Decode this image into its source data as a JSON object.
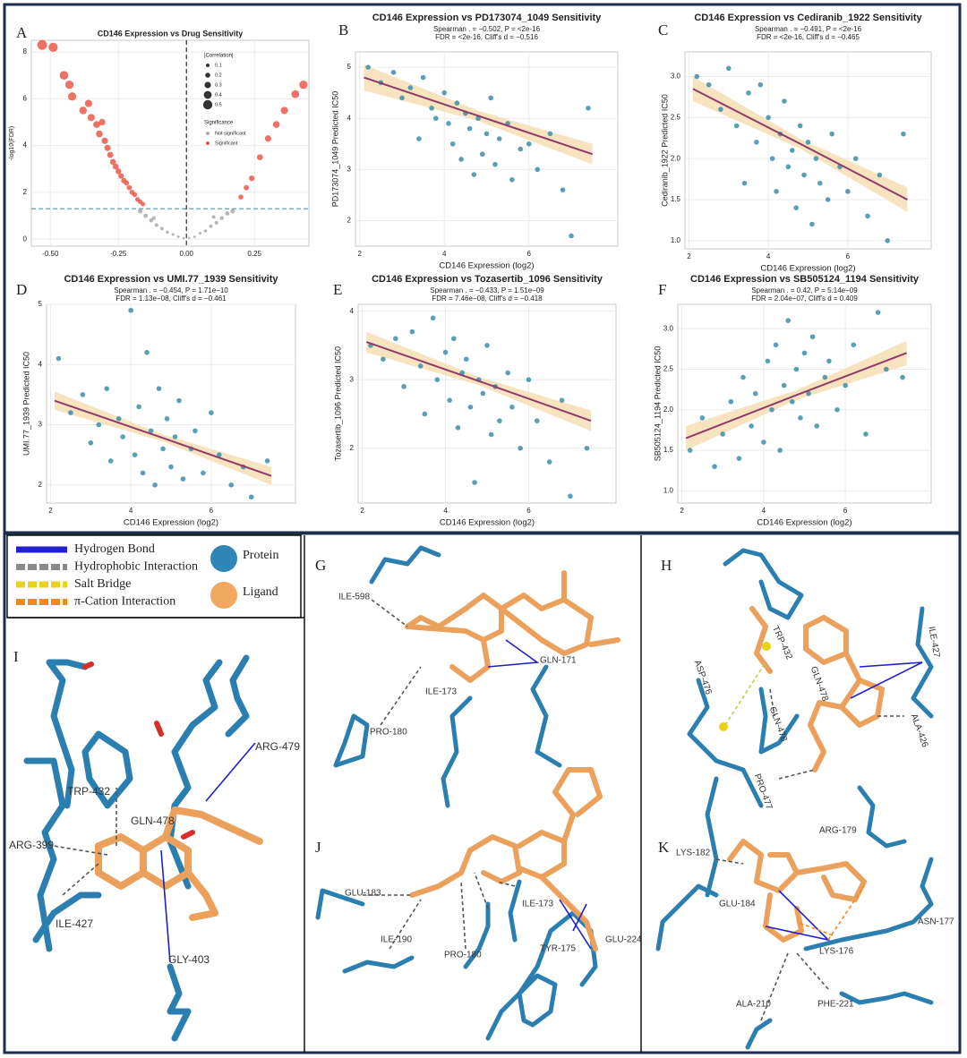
{
  "chart_data": [
    {
      "type": "volcano",
      "panel": "A",
      "title": "CD146 Expression vs Drug Sensitivity",
      "y_label": "-log10(FDR)",
      "xlim": [
        -0.57,
        0.45
      ],
      "ylim": [
        -0.3,
        8.5
      ],
      "xticks": [
        {
          "value": -0.5,
          "label": "-0.50"
        },
        {
          "value": -0.25,
          "label": "-0.25"
        },
        {
          "value": 0,
          "label": "0.00"
        },
        {
          "value": 0.25,
          "label": "0.25"
        }
      ],
      "yticks": [
        0,
        2,
        4,
        6,
        8
      ],
      "grid": true,
      "threshold": 1.3,
      "threshold_color": "#4a90c8",
      "vline": 0,
      "size_legend": {
        "title": "|Correlation|",
        "values": [
          0.1,
          0.2,
          0.3,
          0.4,
          0.5
        ]
      },
      "color_legend_title": "Significance",
      "series": [
        {
          "name": "Not significant",
          "color": "#a9a9a9",
          "x": [
            -0.17,
            -0.15,
            -0.13,
            -0.11,
            -0.09,
            -0.07,
            -0.05,
            -0.03,
            -0.01,
            0.01,
            0.03,
            0.05,
            0.07,
            0.09,
            0.11,
            0.13,
            0.15,
            0.17,
            -0.12,
            0.1
          ],
          "values": [
            1.2,
            1.0,
            0.8,
            0.6,
            0.45,
            0.3,
            0.2,
            0.1,
            0.05,
            0.05,
            0.1,
            0.25,
            0.35,
            0.55,
            0.7,
            0.9,
            1.1,
            1.2,
            0.9,
            0.95
          ]
        },
        {
          "name": "Significant",
          "color": "#e8594a",
          "x": [
            -0.53,
            -0.49,
            -0.45,
            -0.43,
            -0.42,
            -0.38,
            -0.36,
            -0.35,
            -0.33,
            -0.32,
            -0.31,
            -0.3,
            -0.29,
            -0.28,
            -0.27,
            -0.26,
            -0.25,
            -0.24,
            -0.23,
            -0.22,
            -0.21,
            -0.2,
            -0.19,
            -0.18,
            -0.17,
            -0.16,
            0.2,
            0.22,
            0.24,
            0.27,
            0.3,
            0.33,
            0.36,
            0.4,
            0.43
          ],
          "values": [
            8.3,
            8.2,
            7.0,
            6.6,
            6.1,
            5.5,
            5.8,
            5.2,
            4.9,
            4.5,
            5.0,
            4.2,
            3.9,
            3.6,
            3.3,
            3.1,
            2.9,
            2.7,
            2.5,
            2.4,
            2.2,
            2.0,
            1.9,
            1.7,
            1.6,
            1.5,
            1.8,
            2.2,
            2.6,
            3.5,
            4.3,
            4.9,
            5.5,
            6.2,
            6.6
          ]
        }
      ]
    },
    {
      "type": "scatter",
      "panel": "B",
      "title": "CD146 Expression vs PD173074_1049 Sensitivity",
      "stats": [
        "Spearman . = −0.502, P = <2e-16",
        "FDR = <2e-16, Cliff's d = −0.516"
      ],
      "x_label": "CD146 Expression (log2)",
      "y_label": "PD173074_1049 Predicted IC50",
      "xlim": [
        1.9,
        8.1
      ],
      "ylim": [
        1.5,
        5.3
      ],
      "xticks": [
        2,
        4,
        6
      ],
      "yticks": [
        2,
        3,
        4,
        5
      ],
      "grid": true,
      "color": "#3d8ea8",
      "x": [
        2.2,
        2.5,
        2.8,
        3.0,
        3.2,
        3.4,
        3.5,
        3.7,
        3.8,
        4.0,
        4.1,
        4.2,
        4.3,
        4.4,
        4.5,
        4.6,
        4.7,
        4.8,
        4.9,
        5.0,
        5.1,
        5.2,
        5.3,
        5.5,
        5.6,
        5.8,
        6.0,
        6.2,
        6.5,
        6.8,
        7.0,
        7.4
      ],
      "values": [
        5.0,
        4.7,
        4.9,
        4.4,
        4.6,
        3.6,
        4.8,
        4.2,
        4.0,
        4.5,
        3.9,
        3.5,
        4.3,
        3.2,
        4.1,
        3.8,
        2.9,
        4.0,
        3.3,
        3.7,
        4.4,
        3.1,
        3.6,
        3.9,
        2.8,
        3.4,
        3.5,
        3.0,
        3.7,
        2.6,
        1.7,
        4.2
      ],
      "fit": {
        "color": "#8e3b67",
        "band_color": "#f6dcb0",
        "x": [
          2.1,
          4.8,
          7.5
        ],
        "y": [
          4.8,
          4.05,
          3.3
        ],
        "lower": [
          4.55,
          3.95,
          3.1
        ],
        "upper": [
          5.05,
          4.15,
          3.5
        ]
      }
    },
    {
      "type": "scatter",
      "panel": "C",
      "title": "CD146 Expression vs Cediranib_1922 Sensitivity",
      "stats": [
        "Spearman . = −0.491, P = <2e-16",
        "FDR = <2e-16, Cliff's d = −0.465"
      ],
      "x_label": "CD146 Expression (log2)",
      "y_label": "Cediranib_1922 Predicted IC50",
      "xlim": [
        1.9,
        8.1
      ],
      "ylim": [
        0.9,
        3.3
      ],
      "xticks": [
        2,
        4,
        6
      ],
      "yticks": [
        {
          "value": 1,
          "label": "1.0"
        },
        1.5,
        {
          "value": 2,
          "label": "2.0"
        },
        2.5,
        {
          "value": 3,
          "label": "3.0"
        }
      ],
      "grid": true,
      "color": "#3d8ea8",
      "x": [
        2.2,
        2.5,
        2.8,
        3.0,
        3.2,
        3.4,
        3.5,
        3.7,
        3.8,
        4.0,
        4.1,
        4.2,
        4.3,
        4.4,
        4.5,
        4.6,
        4.7,
        4.8,
        4.9,
        5.0,
        5.1,
        5.2,
        5.3,
        5.5,
        5.6,
        5.8,
        6.0,
        6.2,
        6.5,
        6.8,
        7.0,
        7.4
      ],
      "values": [
        3.0,
        2.9,
        2.6,
        3.1,
        2.4,
        1.7,
        2.8,
        2.2,
        2.9,
        2.5,
        2.0,
        1.6,
        2.3,
        2.7,
        1.9,
        2.1,
        1.4,
        2.4,
        1.8,
        2.2,
        1.2,
        2.0,
        1.7,
        1.5,
        2.3,
        1.9,
        1.6,
        2.0,
        1.3,
        1.8,
        1.0,
        2.3
      ],
      "fit": {
        "color": "#8e3b67",
        "band_color": "#f6dcb0",
        "x": [
          2.1,
          4.8,
          7.5
        ],
        "y": [
          2.85,
          2.18,
          1.5
        ],
        "lower": [
          2.7,
          2.12,
          1.35
        ],
        "upper": [
          3.0,
          2.24,
          1.65
        ]
      }
    },
    {
      "type": "scatter",
      "panel": "D",
      "title": "CD146 Expression vs UMI.77_1939 Sensitivity",
      "stats": [
        "Spearman . = −0.454, P = 1.71e−10",
        "FDR = 1.13e−08, Cliff's d = −0.461"
      ],
      "x_label": "CD146 Expression (log2)",
      "y_label": "UMI.77_1939 Predicted IC50",
      "xlim": [
        1.9,
        8.1
      ],
      "ylim": [
        1.7,
        5.0
      ],
      "xticks": [
        2,
        4,
        6
      ],
      "yticks": [
        2,
        3,
        4,
        5
      ],
      "grid": true,
      "color": "#3d8ea8",
      "x": [
        2.2,
        2.5,
        2.8,
        3.0,
        3.2,
        3.4,
        3.5,
        3.7,
        3.8,
        4.0,
        4.1,
        4.2,
        4.3,
        4.4,
        4.5,
        4.6,
        4.7,
        4.8,
        4.9,
        5.0,
        5.1,
        5.2,
        5.3,
        5.5,
        5.6,
        5.8,
        6.0,
        6.2,
        6.5,
        6.8,
        7.0,
        7.4
      ],
      "values": [
        4.1,
        3.2,
        3.5,
        2.7,
        3.0,
        3.6,
        2.4,
        3.1,
        2.8,
        4.9,
        2.5,
        3.3,
        2.2,
        4.2,
        2.9,
        2.0,
        3.6,
        2.6,
        3.1,
        2.3,
        2.8,
        3.4,
        2.1,
        2.6,
        2.9,
        2.2,
        3.2,
        2.5,
        2.0,
        2.3,
        1.8,
        2.4
      ],
      "fit": {
        "color": "#8e3b67",
        "band_color": "#f6dcb0",
        "x": [
          2.1,
          4.8,
          7.5
        ],
        "y": [
          3.4,
          2.78,
          2.15
        ],
        "lower": [
          3.25,
          2.72,
          2.0
        ],
        "upper": [
          3.55,
          2.84,
          2.3
        ]
      }
    },
    {
      "type": "scatter",
      "panel": "E",
      "title": "CD146 Expression vs Tozasertib_1096 Sensitivity",
      "stats": [
        "Spearman . = −0.433, P = 1.51e−09",
        "FDR = 7.46e−08, Cliff's d = −0.418"
      ],
      "x_label": "CD146 Expression (log2)",
      "y_label": "Tozasertib_1096 Predicted IC50",
      "xlim": [
        1.9,
        8.1
      ],
      "ylim": [
        1.2,
        4.1
      ],
      "xticks": [
        2,
        4,
        6
      ],
      "yticks": [
        2,
        3,
        4
      ],
      "grid": true,
      "color": "#3d8ea8",
      "x": [
        2.2,
        2.5,
        2.8,
        3.0,
        3.2,
        3.4,
        3.5,
        3.7,
        3.8,
        4.0,
        4.1,
        4.2,
        4.3,
        4.4,
        4.5,
        4.6,
        4.7,
        4.8,
        4.9,
        5.0,
        5.1,
        5.2,
        5.3,
        5.5,
        5.6,
        5.8,
        6.0,
        6.2,
        6.5,
        6.8,
        7.0,
        7.4
      ],
      "values": [
        3.5,
        3.3,
        3.6,
        2.9,
        3.7,
        3.2,
        2.5,
        3.9,
        3.0,
        3.4,
        2.7,
        3.6,
        2.3,
        3.1,
        3.3,
        2.6,
        1.5,
        3.0,
        2.8,
        3.5,
        2.2,
        2.9,
        2.4,
        3.1,
        2.6,
        2.0,
        3.0,
        2.4,
        1.8,
        2.7,
        1.3,
        2.0
      ],
      "fit": {
        "color": "#8e3b67",
        "band_color": "#f6dcb0",
        "x": [
          2.1,
          4.8,
          7.5
        ],
        "y": [
          3.55,
          2.98,
          2.4
        ],
        "lower": [
          3.4,
          2.92,
          2.25
        ],
        "upper": [
          3.7,
          3.04,
          2.55
        ]
      }
    },
    {
      "type": "scatter",
      "panel": "F",
      "title": "CD146 Expression vs SB505124_1194 Sensitivity",
      "stats": [
        "Spearman . = 0.42, P = 5.14e−09",
        "FDR = 2.04e−07, Cliff's d = 0.409"
      ],
      "x_label": "CD146 Expression (log2)",
      "y_label": "SB505124_1194 Predicted IC50",
      "xlim": [
        1.9,
        8.1
      ],
      "ylim": [
        0.85,
        3.3
      ],
      "xticks": [
        2,
        4,
        6
      ],
      "yticks": [
        {
          "value": 1,
          "label": "1.0"
        },
        1.5,
        {
          "value": 2,
          "label": "2.0"
        },
        2.5,
        {
          "value": 3,
          "label": "3.0"
        }
      ],
      "grid": true,
      "color": "#3d8ea8",
      "x": [
        2.2,
        2.5,
        2.8,
        3.0,
        3.2,
        3.4,
        3.5,
        3.7,
        3.8,
        4.0,
        4.1,
        4.2,
        4.3,
        4.4,
        4.5,
        4.6,
        4.7,
        4.8,
        4.9,
        5.0,
        5.1,
        5.2,
        5.3,
        5.5,
        5.6,
        5.8,
        6.0,
        6.2,
        6.5,
        6.8,
        7.0,
        7.4
      ],
      "values": [
        1.5,
        1.9,
        1.3,
        1.7,
        2.1,
        1.4,
        2.4,
        1.8,
        2.2,
        1.6,
        2.6,
        2.0,
        2.8,
        1.5,
        2.3,
        3.1,
        2.1,
        2.5,
        1.9,
        2.7,
        2.2,
        2.9,
        1.8,
        2.4,
        2.6,
        2.0,
        2.3,
        2.8,
        1.7,
        3.2,
        2.5,
        2.4
      ],
      "fit": {
        "color": "#8e3b67",
        "band_color": "#f6dcb0",
        "x": [
          2.1,
          4.8,
          7.5
        ],
        "y": [
          1.65,
          2.18,
          2.7
        ],
        "lower": [
          1.5,
          2.12,
          2.55
        ],
        "upper": [
          1.8,
          2.24,
          2.85
        ]
      }
    }
  ],
  "legend": {
    "interactions": [
      {
        "label": "Hydrogen Bond",
        "color": "#2020d0",
        "dashed": false
      },
      {
        "label": "Hydrophobic Interaction",
        "color": "#8a8a8a",
        "dashed": true
      },
      {
        "label": "Salt Bridge",
        "color": "#e8d21c",
        "dashed": true
      },
      {
        "label": "π-Cation Interaction",
        "color": "#ee8a1f",
        "dashed": true
      }
    ],
    "molecules": [
      {
        "label": "Protein",
        "color": "#2f86b6"
      },
      {
        "label": "Ligand",
        "color": "#f3a860"
      }
    ]
  },
  "structures": [
    {
      "panel": "I",
      "residues": [
        "TRP-432",
        "ARG-479",
        "GLN-478",
        "ARG-399",
        "ILE-427",
        "GLY-403"
      ]
    },
    {
      "panel": "G",
      "residues": [
        "ILE-598",
        "GLN-171",
        "ILE-173",
        "PRO-180"
      ]
    },
    {
      "panel": "J",
      "residues": [
        "GLU-183",
        "ILE-190",
        "PRO-180",
        "ILE-173",
        "TYR-175",
        "GLU-224"
      ]
    },
    {
      "panel": "H",
      "residues": [
        "TRP-432",
        "ASP-476",
        "GLN-478",
        "GLN-478",
        "ILE-427",
        "ALA-426",
        "PRO-477"
      ]
    },
    {
      "panel": "K",
      "residues": [
        "ARG-179",
        "LYS-182",
        "GLU-184",
        "ASN-177",
        "LYS-176",
        "ALA-210",
        "PHE-221"
      ]
    }
  ]
}
